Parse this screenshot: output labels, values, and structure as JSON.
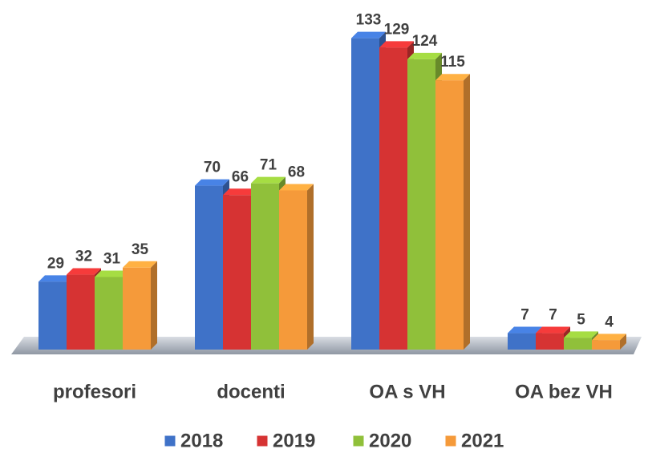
{
  "chart_data": {
    "type": "bar3d",
    "categories": [
      "profesori",
      "docenti",
      "OA s VH",
      "OA bez VH"
    ],
    "series": [
      {
        "name": "2018",
        "color": "#3f72c8",
        "values": [
          29,
          70,
          133,
          7
        ]
      },
      {
        "name": "2019",
        "color": "#d63333",
        "values": [
          32,
          66,
          129,
          7
        ]
      },
      {
        "name": "2020",
        "color": "#90c03a",
        "values": [
          31,
          71,
          124,
          5
        ]
      },
      {
        "name": "2021",
        "color": "#f59a3a",
        "values": [
          35,
          68,
          115,
          4
        ]
      }
    ],
    "legend": "bottom"
  }
}
